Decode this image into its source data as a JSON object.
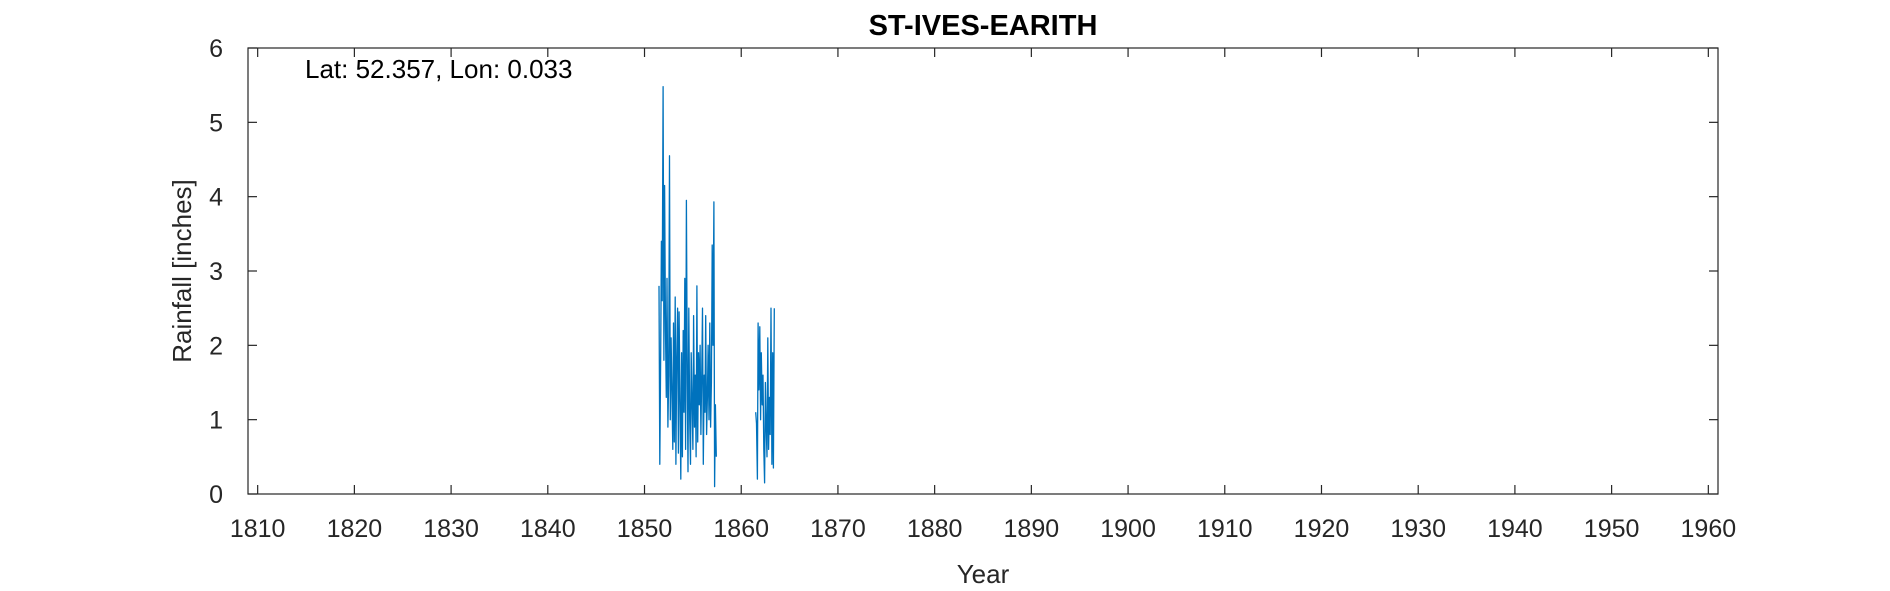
{
  "chart_data": {
    "type": "line",
    "title": "ST-IVES-EARITH",
    "xlabel": "Year",
    "ylabel": "Rainfall [inches]",
    "annotation": "Lat: 52.357, Lon: 0.033",
    "xlim": [
      1809,
      1961
    ],
    "ylim": [
      0,
      6
    ],
    "xticks": [
      1810,
      1820,
      1830,
      1840,
      1850,
      1860,
      1870,
      1880,
      1890,
      1900,
      1910,
      1920,
      1930,
      1940,
      1950,
      1960
    ],
    "yticks": [
      0,
      1,
      2,
      3,
      4,
      5,
      6
    ],
    "grid": false,
    "line_color": "#0072BD",
    "series": [
      {
        "segments": [
          {
            "x": [
              1851.5,
              1851.58,
              1851.67,
              1851.75,
              1851.83,
              1851.92,
              1852.0,
              1852.08,
              1852.17,
              1852.25,
              1852.33,
              1852.42,
              1852.5,
              1852.58,
              1852.67,
              1852.75,
              1852.83,
              1852.92,
              1853.0,
              1853.08,
              1853.17,
              1853.25,
              1853.33,
              1853.42,
              1853.5,
              1853.58,
              1853.67,
              1853.75,
              1853.83,
              1853.92,
              1854.0,
              1854.08,
              1854.17,
              1854.25,
              1854.33,
              1854.42,
              1854.5,
              1854.58,
              1854.67,
              1854.75,
              1854.83,
              1854.92,
              1855.0,
              1855.08,
              1855.17,
              1855.25,
              1855.33,
              1855.42,
              1855.5,
              1855.58,
              1855.67,
              1855.75,
              1855.83,
              1855.92,
              1856.0,
              1856.08,
              1856.17,
              1856.25,
              1856.33,
              1856.42,
              1856.5,
              1856.58,
              1856.67,
              1856.75,
              1856.83,
              1856.92,
              1857.0,
              1857.08,
              1857.17,
              1857.25,
              1857.33,
              1857.42
            ],
            "y": [
              2.8,
              0.4,
              1.9,
              3.4,
              2.6,
              5.48,
              1.8,
              4.15,
              2.2,
              1.3,
              2.9,
              0.9,
              1.6,
              4.55,
              1.0,
              2.1,
              1.4,
              0.6,
              2.3,
              0.7,
              2.65,
              0.4,
              1.8,
              2.5,
              0.55,
              2.45,
              1.2,
              0.2,
              1.9,
              0.5,
              2.2,
              1.1,
              2.9,
              0.6,
              3.95,
              1.5,
              0.3,
              2.5,
              1.0,
              0.4,
              1.9,
              1.2,
              0.6,
              2.4,
              0.9,
              1.6,
              0.5,
              2.8,
              0.7,
              1.9,
              1.2,
              2.0,
              0.8,
              1.7,
              2.5,
              0.4,
              1.6,
              1.1,
              2.4,
              0.8,
              1.3,
              2.0,
              1.0,
              2.3,
              0.9,
              1.5,
              3.35,
              2.0,
              3.93,
              0.1,
              1.2,
              0.5
            ]
          },
          {
            "x": [
              1861.5,
              1861.58,
              1861.67,
              1861.75,
              1861.83,
              1861.92,
              1862.0,
              1862.08,
              1862.17,
              1862.25,
              1862.33,
              1862.42,
              1862.5,
              1862.58,
              1862.67,
              1862.75,
              1862.83,
              1862.92,
              1863.0,
              1863.08,
              1863.17,
              1863.25,
              1863.33,
              1863.42
            ],
            "y": [
              1.1,
              0.95,
              0.2,
              2.3,
              1.4,
              2.25,
              1.0,
              1.9,
              1.2,
              1.6,
              0.6,
              0.15,
              1.5,
              0.9,
              0.5,
              2.1,
              0.6,
              1.3,
              0.8,
              2.5,
              0.4,
              1.9,
              0.35,
              2.5
            ]
          }
        ]
      }
    ]
  }
}
